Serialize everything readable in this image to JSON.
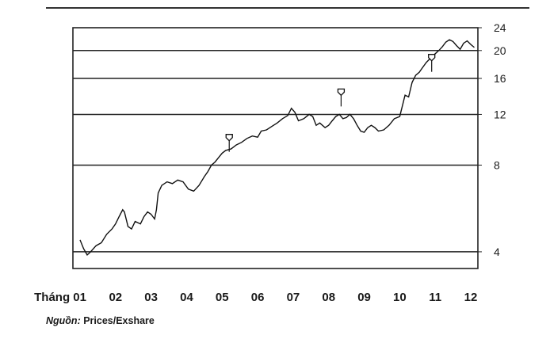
{
  "chart_data": {
    "type": "line",
    "title": "",
    "scale": "log",
    "ylim": [
      3.5,
      24
    ],
    "y_ticks": [
      4,
      8,
      12,
      16,
      20,
      24
    ],
    "y_gridlines": [
      4,
      8,
      12,
      16,
      20
    ],
    "y_axis_side": "right",
    "x_prefix": "Tháng",
    "months": [
      "01",
      "02",
      "03",
      "04",
      "05",
      "06",
      "07",
      "08",
      "09",
      "10",
      "11",
      "12"
    ],
    "series": [
      {
        "points": [
          [
            0.0,
            4.4
          ],
          [
            0.1,
            4.1
          ],
          [
            0.2,
            3.9
          ],
          [
            0.3,
            4.0
          ],
          [
            0.45,
            4.2
          ],
          [
            0.6,
            4.3
          ],
          [
            0.75,
            4.6
          ],
          [
            0.9,
            4.8
          ],
          [
            1.0,
            5.0
          ],
          [
            1.1,
            5.3
          ],
          [
            1.2,
            5.6
          ],
          [
            1.25,
            5.5
          ],
          [
            1.35,
            4.9
          ],
          [
            1.45,
            4.8
          ],
          [
            1.55,
            5.1
          ],
          [
            1.7,
            5.0
          ],
          [
            1.8,
            5.3
          ],
          [
            1.9,
            5.5
          ],
          [
            2.0,
            5.4
          ],
          [
            2.1,
            5.2
          ],
          [
            2.15,
            5.6
          ],
          [
            2.2,
            6.4
          ],
          [
            2.3,
            6.8
          ],
          [
            2.45,
            7.0
          ],
          [
            2.6,
            6.9
          ],
          [
            2.75,
            7.1
          ],
          [
            2.9,
            7.0
          ],
          [
            3.05,
            6.6
          ],
          [
            3.2,
            6.5
          ],
          [
            3.35,
            6.8
          ],
          [
            3.5,
            7.3
          ],
          [
            3.6,
            7.6
          ],
          [
            3.7,
            8.0
          ],
          [
            3.8,
            8.2
          ],
          [
            3.9,
            8.5
          ],
          [
            4.0,
            8.8
          ],
          [
            4.1,
            9.0
          ],
          [
            4.25,
            9.1
          ],
          [
            4.4,
            9.4
          ],
          [
            4.55,
            9.6
          ],
          [
            4.7,
            9.9
          ],
          [
            4.85,
            10.1
          ],
          [
            5.0,
            10.0
          ],
          [
            5.1,
            10.5
          ],
          [
            5.25,
            10.6
          ],
          [
            5.4,
            10.9
          ],
          [
            5.55,
            11.2
          ],
          [
            5.7,
            11.6
          ],
          [
            5.85,
            11.9
          ],
          [
            5.95,
            12.6
          ],
          [
            6.05,
            12.2
          ],
          [
            6.15,
            11.4
          ],
          [
            6.3,
            11.6
          ],
          [
            6.45,
            12.0
          ],
          [
            6.55,
            11.8
          ],
          [
            6.65,
            11.0
          ],
          [
            6.75,
            11.2
          ],
          [
            6.9,
            10.8
          ],
          [
            7.0,
            11.0
          ],
          [
            7.1,
            11.4
          ],
          [
            7.2,
            11.8
          ],
          [
            7.3,
            12.0
          ],
          [
            7.4,
            11.6
          ],
          [
            7.5,
            11.7
          ],
          [
            7.6,
            12.0
          ],
          [
            7.7,
            11.6
          ],
          [
            7.8,
            11.0
          ],
          [
            7.9,
            10.5
          ],
          [
            8.0,
            10.4
          ],
          [
            8.1,
            10.8
          ],
          [
            8.2,
            11.0
          ],
          [
            8.3,
            10.8
          ],
          [
            8.4,
            10.5
          ],
          [
            8.55,
            10.6
          ],
          [
            8.7,
            11.0
          ],
          [
            8.85,
            11.6
          ],
          [
            9.0,
            11.8
          ],
          [
            9.1,
            13.2
          ],
          [
            9.15,
            14.0
          ],
          [
            9.25,
            13.8
          ],
          [
            9.35,
            15.5
          ],
          [
            9.45,
            16.4
          ],
          [
            9.55,
            16.8
          ],
          [
            9.65,
            17.5
          ],
          [
            9.75,
            18.2
          ],
          [
            9.9,
            19.0
          ],
          [
            10.0,
            19.5
          ],
          [
            10.1,
            20.0
          ],
          [
            10.2,
            20.6
          ],
          [
            10.3,
            21.4
          ],
          [
            10.4,
            21.8
          ],
          [
            10.5,
            21.5
          ],
          [
            10.6,
            20.8
          ],
          [
            10.7,
            20.2
          ],
          [
            10.8,
            21.2
          ],
          [
            10.9,
            21.6
          ],
          [
            11.0,
            21.0
          ],
          [
            11.1,
            20.5
          ]
        ]
      }
    ],
    "markers": [
      {
        "x": 4.2,
        "y": 9.6
      },
      {
        "x": 7.35,
        "y": 13.8
      },
      {
        "x": 9.9,
        "y": 18.2
      }
    ]
  },
  "source": {
    "lead": "Nguồn:",
    "text": "Prices/Exshare"
  }
}
